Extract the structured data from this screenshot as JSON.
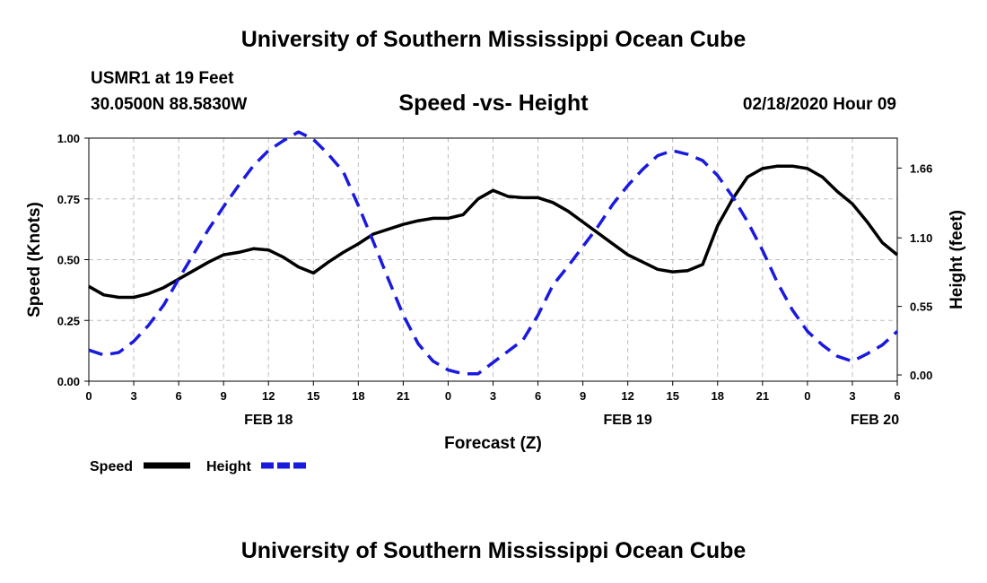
{
  "header": {
    "title": "University of Southern Mississippi Ocean Cube",
    "station": "USMR1 at 19 Feet",
    "coordinates": "30.0500N 88.5830W",
    "subtitle": "Speed -vs- Height",
    "datetime": "02/18/2020 Hour 09"
  },
  "footer": {
    "title": "University of Southern Mississippi Ocean Cube"
  },
  "chart_data": {
    "type": "line",
    "title": "Speed -vs- Height",
    "xlabel": "Forecast (Z)",
    "ylabel": "Speed (Knots)",
    "y2label": "Height (feet)",
    "xlim": [
      0,
      54
    ],
    "ylim": [
      0,
      1.0
    ],
    "y2lim": [
      -0.05,
      1.9
    ],
    "grid": true,
    "x_ticks": [
      0,
      3,
      6,
      9,
      12,
      15,
      18,
      21,
      24,
      27,
      30,
      33,
      36,
      39,
      42,
      45,
      48,
      51,
      54
    ],
    "x_tick_labels": [
      "0",
      "3",
      "6",
      "9",
      "12",
      "15",
      "18",
      "21",
      "0",
      "3",
      "6",
      "9",
      "12",
      "15",
      "18",
      "21",
      "0",
      "3",
      "6"
    ],
    "y_ticks": [
      0,
      0.25,
      0.5,
      0.75,
      1.0
    ],
    "y_tick_labels": [
      "0.00",
      "0.25",
      "0.50",
      "0.75",
      "1.00"
    ],
    "y2_ticks": [
      0,
      0.55,
      1.1,
      1.66
    ],
    "y2_tick_labels": [
      "0.00",
      "0.55",
      "1.10",
      "1.66"
    ],
    "day_labels": [
      {
        "x": 12,
        "label": "FEB 18"
      },
      {
        "x": 36,
        "label": "FEB 19"
      },
      {
        "x": 52.5,
        "label": "FEB 20"
      }
    ],
    "legend": {
      "placement": "bottom-left",
      "entries": [
        {
          "name": "Speed",
          "style": "solid",
          "color": "#000000"
        },
        {
          "name": "Height",
          "style": "dashed",
          "color": "#1a1adf"
        }
      ]
    },
    "series": [
      {
        "name": "Speed",
        "axis": "left",
        "color": "#000000",
        "style": "solid",
        "x": [
          0,
          1,
          2,
          3,
          4,
          5,
          6,
          7,
          8,
          9,
          10,
          11,
          12,
          13,
          14,
          15,
          16,
          17,
          18,
          19,
          20,
          21,
          22,
          23,
          24,
          25,
          26,
          27,
          28,
          29,
          30,
          31,
          32,
          33,
          34,
          35,
          36,
          37,
          38,
          39,
          40,
          41,
          42,
          43,
          44,
          45,
          46,
          47,
          48,
          49,
          50,
          51,
          52,
          53,
          54
        ],
        "values": [
          0.39,
          0.355,
          0.345,
          0.345,
          0.36,
          0.385,
          0.42,
          0.455,
          0.49,
          0.52,
          0.53,
          0.545,
          0.54,
          0.51,
          0.47,
          0.445,
          0.49,
          0.53,
          0.565,
          0.605,
          0.625,
          0.645,
          0.66,
          0.67,
          0.67,
          0.685,
          0.75,
          0.785,
          0.76,
          0.755,
          0.755,
          0.735,
          0.7,
          0.655,
          0.61,
          0.565,
          0.52,
          0.49,
          0.46,
          0.45,
          0.455,
          0.48,
          0.64,
          0.75,
          0.84,
          0.875,
          0.885,
          0.885,
          0.875,
          0.84,
          0.78,
          0.73,
          0.655,
          0.57,
          0.52
        ]
      },
      {
        "name": "Height",
        "axis": "right",
        "color": "#1a1adf",
        "style": "dashed",
        "x": [
          0,
          1,
          2,
          3,
          4,
          5,
          6,
          7,
          8,
          9,
          10,
          11,
          12,
          13,
          14,
          15,
          16,
          17,
          18,
          19,
          20,
          21,
          22,
          23,
          24,
          25,
          26,
          27,
          28,
          29,
          30,
          31,
          32,
          33,
          34,
          35,
          36,
          37,
          38,
          39,
          40,
          41,
          42,
          43,
          44,
          45,
          46,
          47,
          48,
          49,
          50,
          51,
          52,
          53,
          54
        ],
        "values": [
          0.2,
          0.16,
          0.18,
          0.27,
          0.4,
          0.56,
          0.77,
          0.97,
          1.17,
          1.35,
          1.52,
          1.68,
          1.8,
          1.88,
          1.95,
          1.89,
          1.77,
          1.63,
          1.36,
          1.07,
          0.77,
          0.48,
          0.25,
          0.11,
          0.04,
          0.01,
          0.01,
          0.1,
          0.19,
          0.28,
          0.48,
          0.72,
          0.87,
          1.03,
          1.19,
          1.37,
          1.52,
          1.65,
          1.76,
          1.8,
          1.77,
          1.72,
          1.6,
          1.43,
          1.23,
          1.0,
          0.74,
          0.52,
          0.35,
          0.24,
          0.15,
          0.11,
          0.17,
          0.24,
          0.35
        ]
      }
    ]
  }
}
